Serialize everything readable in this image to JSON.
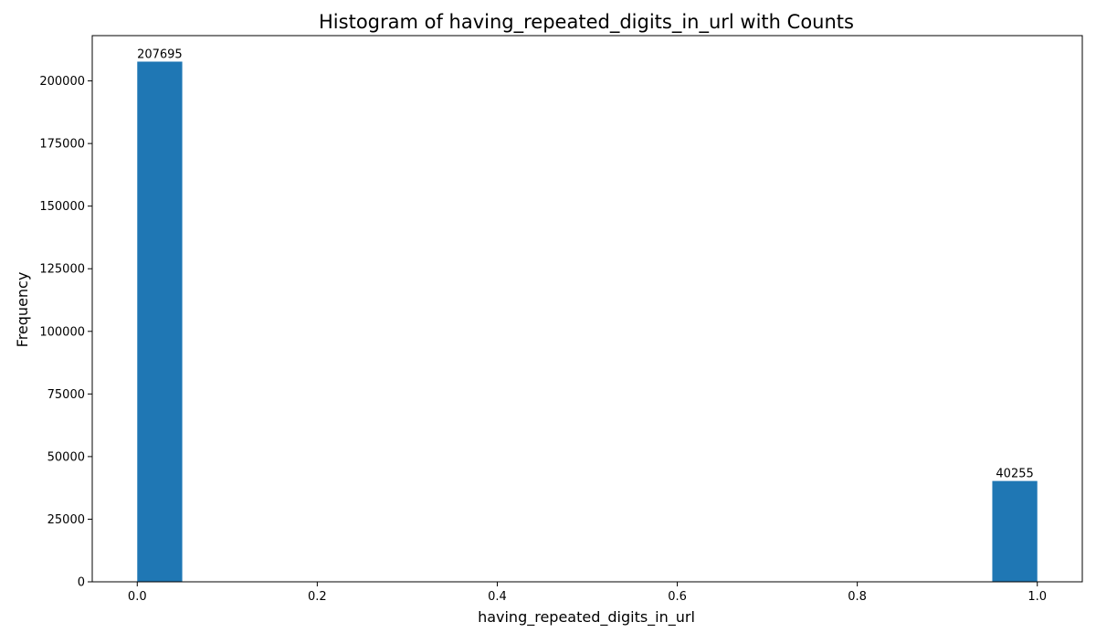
{
  "chart_data": {
    "type": "bar",
    "title": "Histogram of having_repeated_digits_in_url with Counts",
    "xlabel": "having_repeated_digits_in_url",
    "ylabel": "Frequency",
    "xlim": [
      -0.05,
      1.05
    ],
    "ylim": [
      0,
      218080
    ],
    "bin_width": 0.05,
    "bins": [
      {
        "x_start": 0.0,
        "x_end": 0.05,
        "value": 207695,
        "label": "207695"
      },
      {
        "x_start": 0.95,
        "x_end": 1.0,
        "value": 40255,
        "label": "40255"
      }
    ],
    "x_ticks": [
      {
        "value": 0.0,
        "label": "0.0"
      },
      {
        "value": 0.2,
        "label": "0.2"
      },
      {
        "value": 0.4,
        "label": "0.4"
      },
      {
        "value": 0.6,
        "label": "0.6"
      },
      {
        "value": 0.8,
        "label": "0.8"
      },
      {
        "value": 1.0,
        "label": "1.0"
      }
    ],
    "y_ticks": [
      {
        "value": 0,
        "label": "0"
      },
      {
        "value": 25000,
        "label": "25000"
      },
      {
        "value": 50000,
        "label": "50000"
      },
      {
        "value": 75000,
        "label": "75000"
      },
      {
        "value": 100000,
        "label": "100000"
      },
      {
        "value": 125000,
        "label": "125000"
      },
      {
        "value": 150000,
        "label": "150000"
      },
      {
        "value": 175000,
        "label": "175000"
      },
      {
        "value": 200000,
        "label": "200000"
      }
    ],
    "grid": false,
    "bar_color": "#1f77b4"
  }
}
